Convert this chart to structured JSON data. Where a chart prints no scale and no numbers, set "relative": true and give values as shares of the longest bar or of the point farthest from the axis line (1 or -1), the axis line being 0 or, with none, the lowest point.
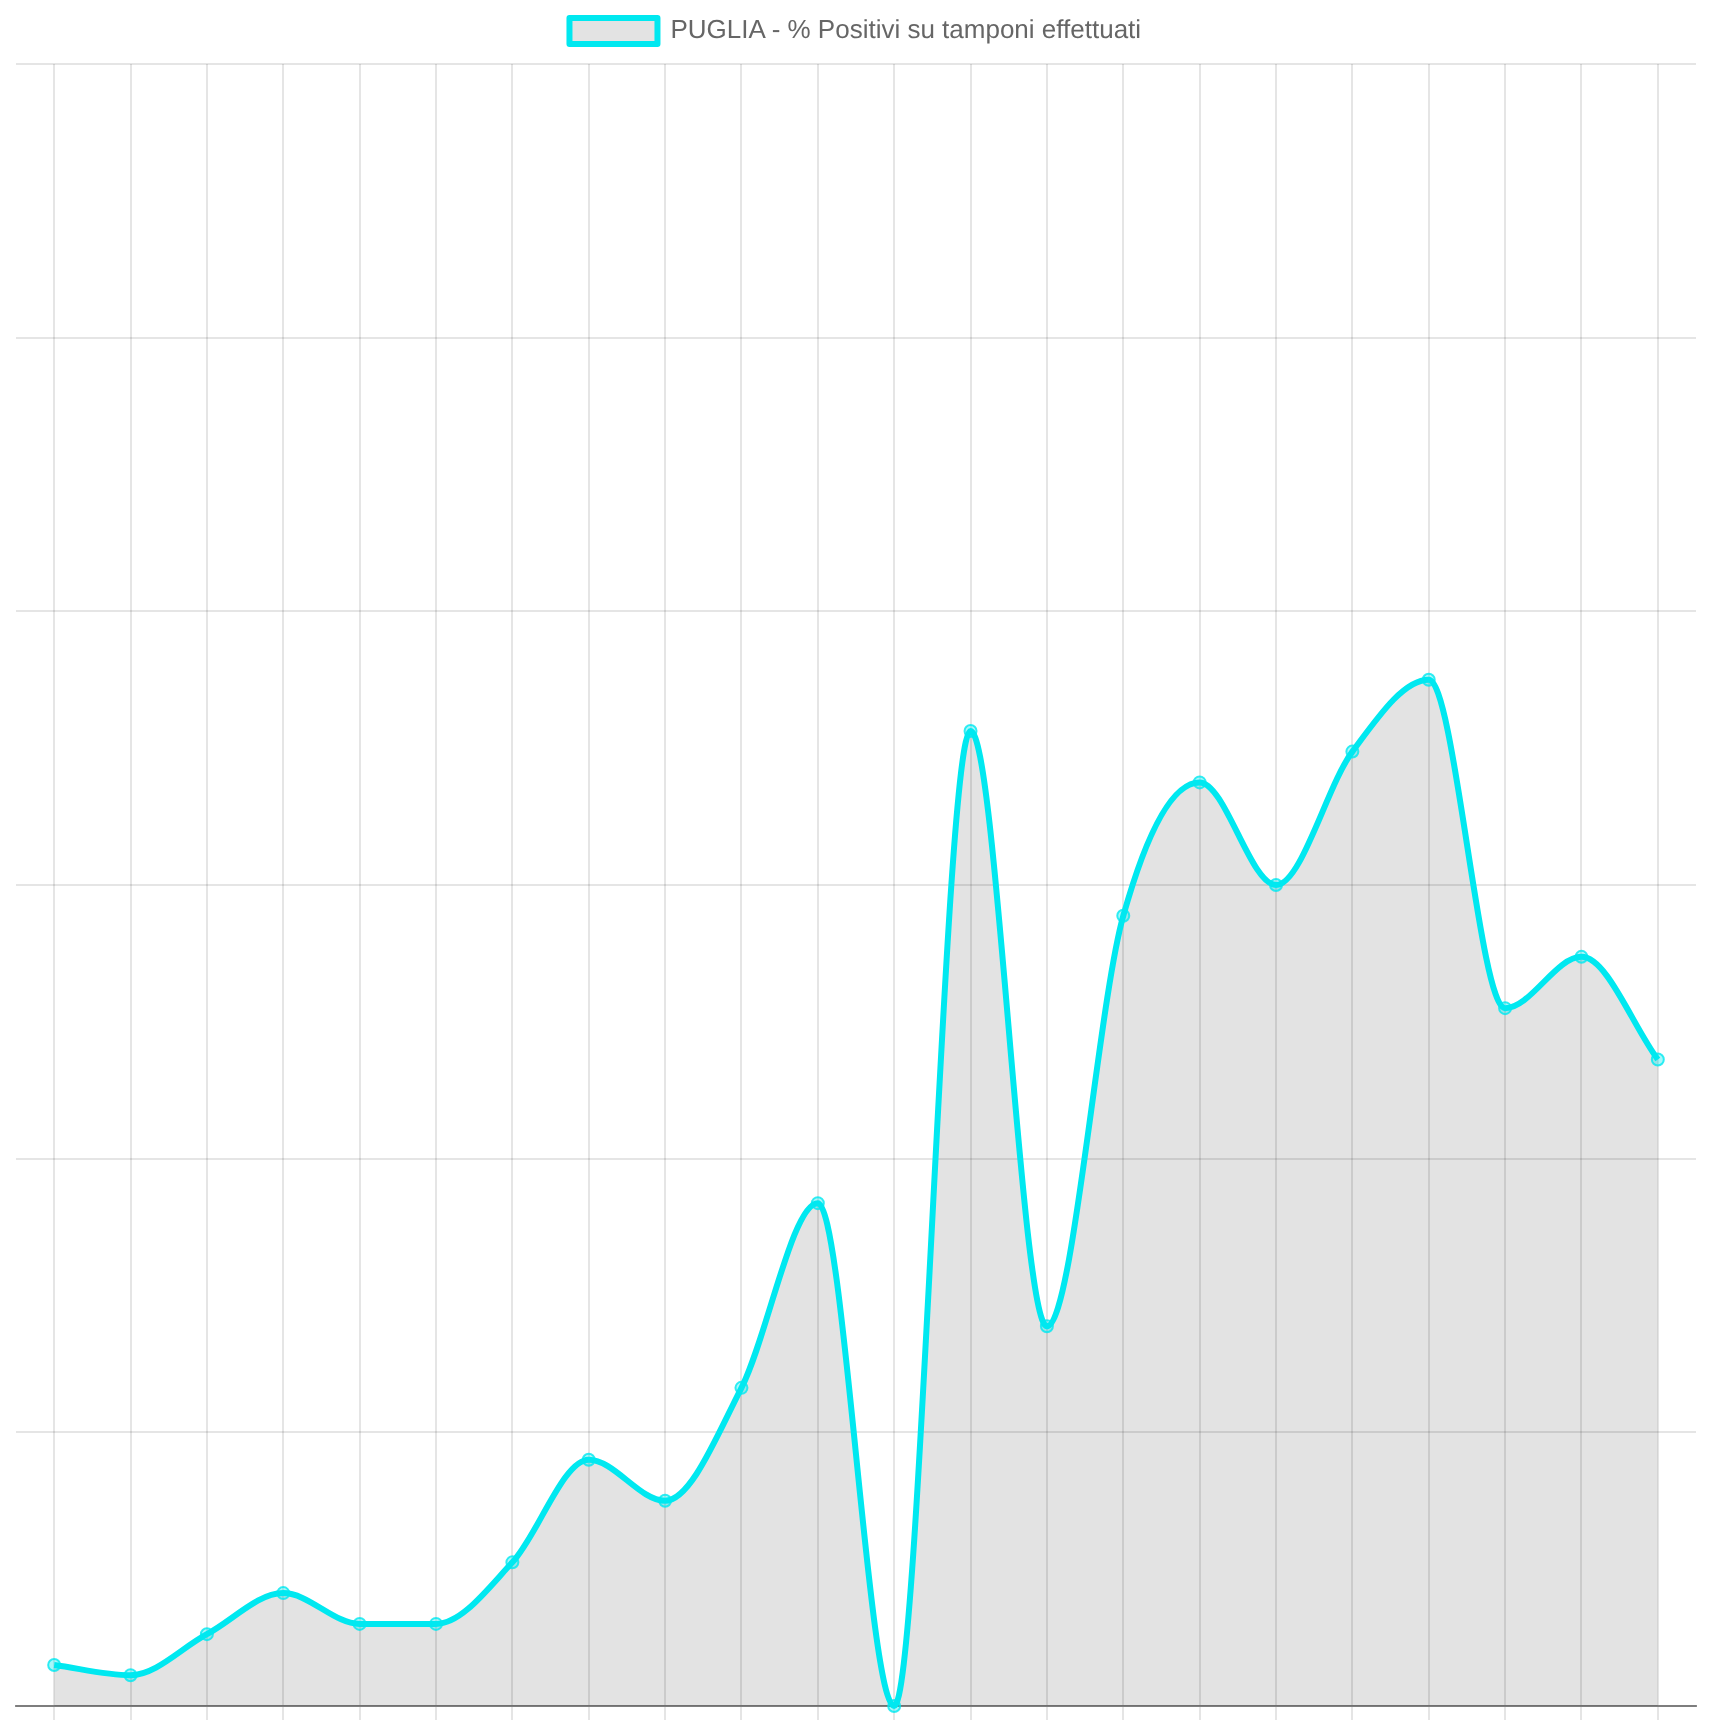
{
  "chart_data": {
    "type": "area",
    "relative": true,
    "categories": [
      null,
      null,
      null,
      null,
      null,
      null,
      null,
      null,
      null,
      null,
      null,
      null,
      null,
      null,
      null,
      null,
      null,
      null,
      null,
      null,
      null,
      null
    ],
    "series": [
      {
        "name": "PUGLIA - % Positivi su tamponi effettuati",
        "color": "#00e8f0",
        "values": [
          0.04,
          0.03,
          0.07,
          0.11,
          0.08,
          0.08,
          0.14,
          0.24,
          0.2,
          0.31,
          0.49,
          0,
          0.95,
          0.37,
          0.77,
          0.9,
          0.8,
          0.93,
          1,
          0.68,
          0.73,
          0.63
        ]
      }
    ],
    "grid": true,
    "legend": "top",
    "marker": "circle",
    "tick_labels": false
  }
}
